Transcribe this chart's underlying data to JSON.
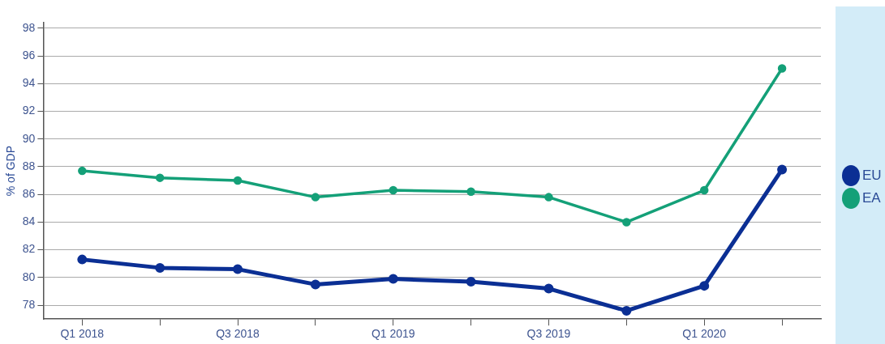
{
  "chart_data": {
    "type": "line",
    "ylabel": "% of GDP",
    "categories": [
      "Q1 2018",
      null,
      "Q3 2018",
      null,
      "Q1 2019",
      null,
      "Q3 2019",
      null,
      "Q1 2020",
      null
    ],
    "series": [
      {
        "name": "EU",
        "color": "#0b2f94",
        "values": [
          81.3,
          80.7,
          80.6,
          79.5,
          79.9,
          79.7,
          79.2,
          77.6,
          79.4,
          87.8
        ]
      },
      {
        "name": "EA",
        "color": "#14a078",
        "values": [
          87.7,
          87.2,
          87.0,
          85.8,
          86.3,
          86.2,
          85.8,
          84.0,
          86.3,
          95.1
        ]
      }
    ],
    "ylim": [
      77,
      98.4
    ],
    "yticks": [
      78,
      80,
      82,
      84,
      86,
      88,
      90,
      92,
      94,
      96,
      98
    ],
    "grid": "y",
    "legend": "right",
    "marker": "circle",
    "line_style": "solid"
  }
}
